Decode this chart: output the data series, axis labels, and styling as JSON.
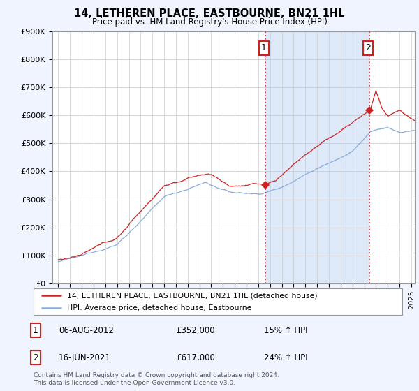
{
  "title": "14, LETHEREN PLACE, EASTBOURNE, BN21 1HL",
  "subtitle": "Price paid vs. HM Land Registry's House Price Index (HPI)",
  "legend_line1": "14, LETHEREN PLACE, EASTBOURNE, BN21 1HL (detached house)",
  "legend_line2": "HPI: Average price, detached house, Eastbourne",
  "transaction1_date": "06-AUG-2012",
  "transaction1_price": "£352,000",
  "transaction1_hpi": "15% ↑ HPI",
  "transaction1_value": 352000,
  "transaction1_year": 2012.625,
  "transaction2_date": "16-JUN-2021",
  "transaction2_price": "£617,000",
  "transaction2_hpi": "24% ↑ HPI",
  "transaction2_value": 617000,
  "transaction2_year": 2021.458,
  "footnote": "Contains HM Land Registry data © Crown copyright and database right 2024.\nThis data is licensed under the Open Government Licence v3.0.",
  "red_color": "#cc2222",
  "blue_color": "#88aadd",
  "shade_color": "#dde8f8",
  "vline_color": "#cc2222",
  "background_color": "#f0f4ff",
  "plot_bg_color": "#ffffff",
  "ylim": [
    0,
    900000
  ],
  "yticks": [
    0,
    100000,
    200000,
    300000,
    400000,
    500000,
    600000,
    700000,
    800000,
    900000
  ],
  "ytick_labels": [
    "£0",
    "£100K",
    "£200K",
    "£300K",
    "£400K",
    "£500K",
    "£600K",
    "£700K",
    "£800K",
    "£900K"
  ],
  "year_start": 1995,
  "year_end": 2025
}
